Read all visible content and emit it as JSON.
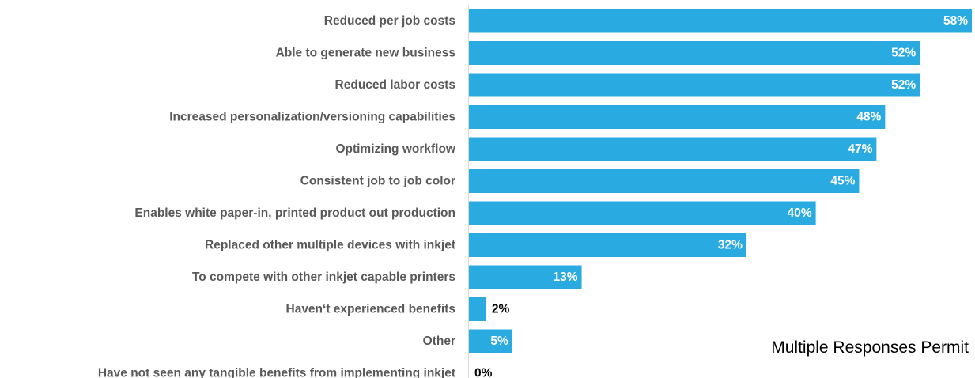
{
  "chart_data": {
    "type": "bar",
    "orientation": "horizontal",
    "categories": [
      "Reduced per job costs",
      "Able to generate new business",
      "Reduced labor costs",
      "Increased personalization/versioning capabilities",
      "Optimizing workflow",
      "Consistent job to job color",
      "Enables white paper-in, printed product out production",
      "Replaced other multiple devices with inkjet",
      "To compete with other inkjet capable printers",
      "Haven‘t experienced benefits",
      "Other",
      "Have not seen any tangible benefits from implementing inkjet"
    ],
    "values": [
      58,
      52,
      52,
      48,
      47,
      45,
      40,
      32,
      13,
      2,
      5,
      0
    ],
    "value_labels": [
      "58%",
      "52%",
      "52%",
      "48%",
      "47%",
      "45%",
      "40%",
      "32%",
      "13%",
      "2%",
      "5%",
      "0%"
    ],
    "xlim": [
      0,
      58
    ],
    "bar_color": "#29ABE2",
    "label_color_inside": "#FFFFFF",
    "label_color_outside": "#000000",
    "category_label_color": "#595959",
    "grid": false,
    "legend": "none"
  },
  "note": "Multiple Responses Permit"
}
